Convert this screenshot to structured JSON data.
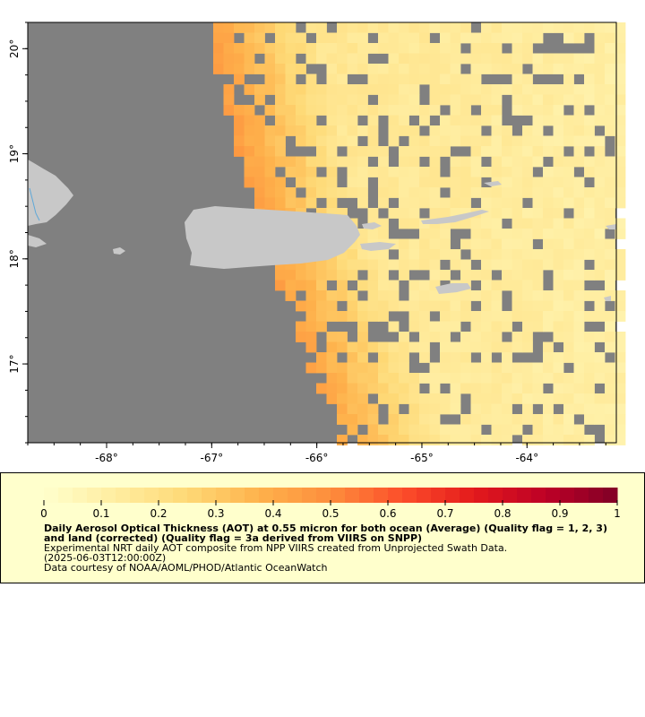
{
  "map": {
    "lon_range": [
      -68.75,
      -63.15
    ],
    "lat_range": [
      16.25,
      20.25
    ],
    "lon_ticks": [
      {
        "value": -68,
        "label": "-68°"
      },
      {
        "value": -67,
        "label": "-67°"
      },
      {
        "value": -66,
        "label": "-66°"
      },
      {
        "value": -65,
        "label": "-65°"
      },
      {
        "value": -64,
        "label": "-64°"
      }
    ],
    "lat_ticks": [
      {
        "value": 20,
        "label": "20°"
      },
      {
        "value": 19,
        "label": "19°"
      },
      {
        "value": 18,
        "label": "18°"
      },
      {
        "value": 17,
        "label": "17°"
      }
    ],
    "colors": {
      "no_data": "#808080",
      "land": "#c8c8c8",
      "low_aot": "#ffffcc",
      "high_aot": "#800026"
    }
  },
  "legend": {
    "colorbar_min": 0,
    "colorbar_max": 1,
    "colorbar_labels": [
      "0",
      "0.1",
      "0.2",
      "0.3",
      "0.4",
      "0.5",
      "0.6",
      "0.7",
      "0.8",
      "0.9",
      "1"
    ],
    "title": "Daily Aerosol Optical Thickness (AOT) at 0.55 micron for both ocean (Average) (Quality flag = 1, 2, 3) and land (corrected) (Quality flag = 3a derived from VIIRS on SNPP)",
    "line1": "Experimental NRT daily AOT composite from NPP VIIRS created from Unprojected Swath Data.",
    "line2": "(2025-06-03T12:00:00Z)",
    "line3": "Data courtesy of NOAA/AOML/PHOD/Atlantic OceanWatch"
  }
}
